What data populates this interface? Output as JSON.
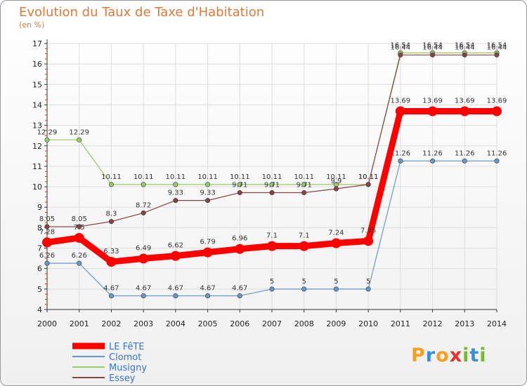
{
  "title": "Evolution du Taux de Taxe d'Habitation",
  "subtitle": "(en %)",
  "logo": {
    "letters": [
      "P",
      "r",
      "o",
      "x",
      "i",
      "t",
      "i"
    ],
    "colors": [
      "#f4a020",
      "#3a8fd8",
      "#f4a020",
      "#e8302c",
      "#78b832",
      "#3a8fd8",
      "#78b832"
    ]
  },
  "chart_data": {
    "type": "line",
    "title": "Evolution du Taux de Taxe d'Habitation",
    "ylabel": "(en %)",
    "x": [
      "2000",
      "2001",
      "2002",
      "2003",
      "2004",
      "2005",
      "2006",
      "2007",
      "2008",
      "2009",
      "2010",
      "2011",
      "2012",
      "2013",
      "2014"
    ],
    "ylim": [
      4,
      17
    ],
    "yticks": [
      4,
      5,
      6,
      7,
      8,
      9,
      10,
      11,
      12,
      13,
      14,
      15,
      16,
      17
    ],
    "series": [
      {
        "name": "LE FêTE",
        "color": "#ff0000",
        "values": [
          7.28,
          7.5,
          6.33,
          6.49,
          6.62,
          6.79,
          6.96,
          7.1,
          7.1,
          7.24,
          7.35,
          13.69,
          13.69,
          13.69,
          13.69
        ],
        "labels": [
          "7.28",
          "7.5",
          "6.33",
          "6.49",
          "6.62",
          "6.79",
          "6.96",
          "7.1",
          "7.1",
          "7.24",
          "7.35",
          "13.69",
          "13.69",
          "13.69",
          "13.69"
        ]
      },
      {
        "name": "Clomot",
        "color": "#6699cc",
        "values": [
          6.26,
          6.26,
          4.67,
          4.67,
          4.67,
          4.67,
          4.67,
          5,
          5,
          5,
          5,
          11.26,
          11.26,
          11.26,
          11.26
        ],
        "labels": [
          "6.26",
          "6.26",
          "4.67",
          "4.67",
          "4.67",
          "4.67",
          "4.67",
          "5",
          "5",
          "5",
          "5",
          "11.26",
          "11.26",
          "11.26",
          "11.26"
        ]
      },
      {
        "name": "Musigny",
        "color": "#99cc66",
        "values": [
          12.29,
          12.29,
          10.11,
          10.11,
          10.11,
          10.11,
          10.11,
          10.11,
          10.11,
          10.11,
          10.11,
          16.54,
          16.54,
          16.54,
          16.54
        ],
        "labels": [
          "12.29",
          "12.29",
          "10.11",
          "10.11",
          "10.11",
          "10.11",
          "10.11",
          "10.11",
          "10.11",
          "10.11",
          "10.11",
          "16.54",
          "16.54",
          "16.54",
          "16.54"
        ]
      },
      {
        "name": "Essey",
        "color": "#884444",
        "values": [
          8.05,
          8.05,
          8.3,
          8.72,
          9.33,
          9.33,
          9.71,
          9.71,
          9.71,
          9.9,
          10.11,
          16.44,
          16.44,
          16.44,
          16.44
        ],
        "labels": [
          "8.05",
          "8.05",
          "8.3",
          "8.72",
          "9.33",
          "9.33",
          "9.71",
          "9.71",
          "9.71",
          "9.9",
          "10.11",
          "16.44",
          "16.44",
          "16.44",
          "16.44"
        ]
      }
    ]
  }
}
